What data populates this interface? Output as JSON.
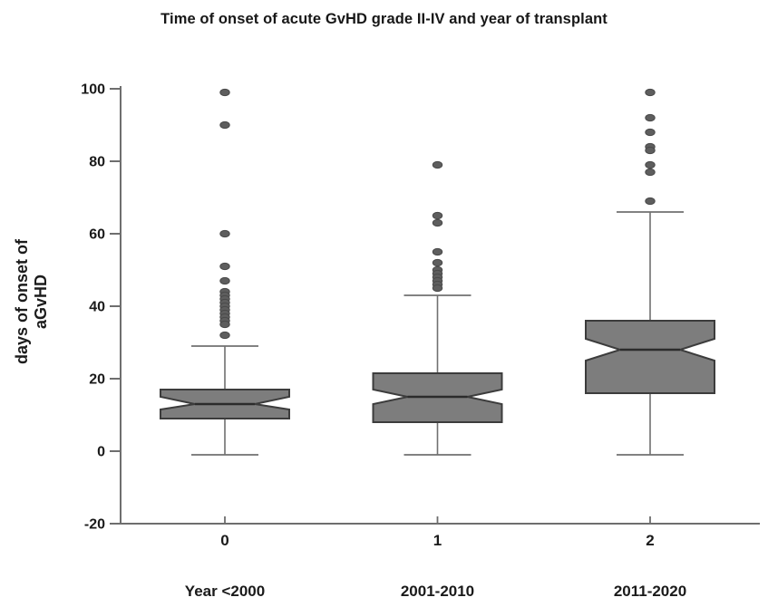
{
  "title": "Time of onset of acute GvHD grade II-IV and year of transplant",
  "chart_data": {
    "type": "boxplot",
    "title": "Time of onset of acute GvHD grade II-IV and year of transplant",
    "ylabel": "days of onset of aGvHD",
    "xlabel": "",
    "ylim": [
      -20,
      100
    ],
    "yticks": [
      "100",
      "80",
      "60",
      "40",
      "20",
      "0",
      "-20"
    ],
    "ytick_values": [
      100,
      80,
      60,
      40,
      20,
      0,
      -20
    ],
    "grid": "off",
    "legend": "none",
    "notched": true,
    "colors": {
      "box_fill": "#7d7d7d",
      "box_stroke": "#3c3c3c",
      "median_line": "#2b2b2b",
      "whisker": "#707070",
      "outlier_fill": "#5e5e5e",
      "outlier_stroke": "#4a4a4a",
      "axis": "#6e6e6e",
      "text": "#1a1a1a"
    },
    "series": [
      {
        "x_tick": "0",
        "group_label": "Year <2000",
        "whisker_low": -1,
        "q1": 9,
        "median": 13,
        "q3": 17,
        "whisker_high": 29,
        "notch_low": 11.5,
        "notch_high": 15,
        "outliers": [
          99,
          90,
          60,
          51,
          47,
          44,
          43,
          42,
          41,
          40,
          39,
          38,
          37,
          36,
          35,
          32
        ]
      },
      {
        "x_tick": "1",
        "group_label": "2001-2010",
        "whisker_low": -1,
        "q1": 8,
        "median": 15,
        "q3": 21.5,
        "whisker_high": 43,
        "notch_low": 13,
        "notch_high": 17,
        "outliers": [
          79,
          65,
          63,
          55,
          52,
          50,
          49,
          48,
          47,
          46,
          45
        ]
      },
      {
        "x_tick": "2",
        "group_label": "2011-2020",
        "whisker_low": -1,
        "q1": 16,
        "median": 28,
        "q3": 36,
        "whisker_high": 66,
        "notch_low": 25,
        "notch_high": 31,
        "outliers": [
          99,
          92,
          88,
          84,
          83,
          79,
          77,
          69
        ]
      }
    ]
  }
}
